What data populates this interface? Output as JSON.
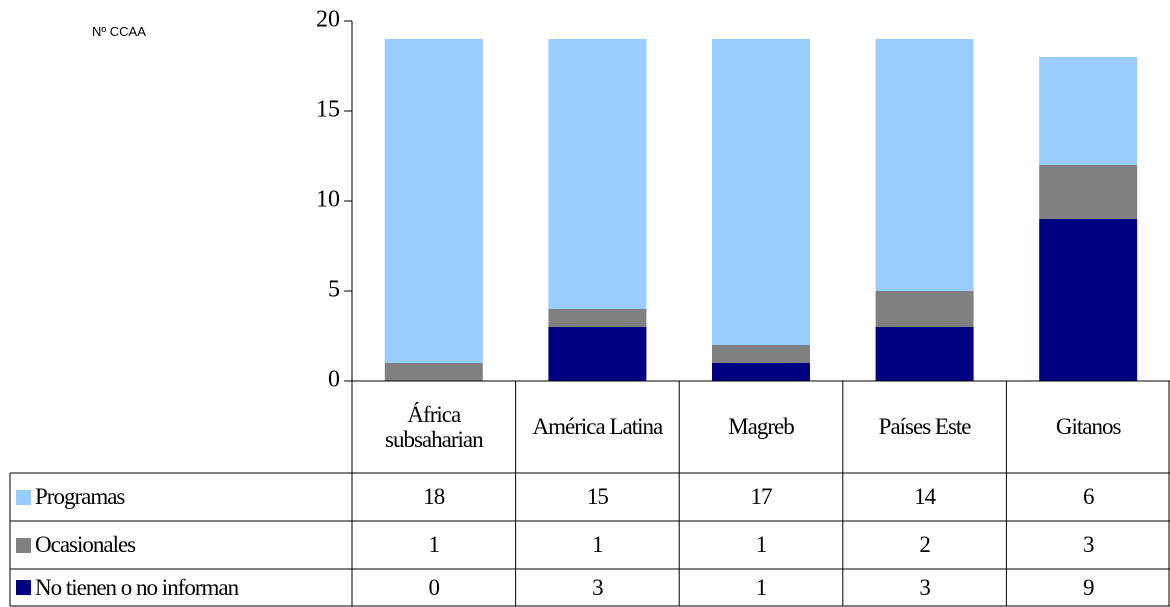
{
  "chart_data": {
    "type": "bar",
    "stacked": true,
    "y_label": "Nº CCAA",
    "categories": [
      "África subsaharian",
      "América Latina",
      "Magreb",
      "Países Este",
      "Gitanos"
    ],
    "series": [
      {
        "name": "Programas",
        "color": "#99ccff",
        "values": [
          18,
          15,
          17,
          14,
          6
        ]
      },
      {
        "name": "Ocasionales",
        "color": "#808080",
        "values": [
          1,
          1,
          1,
          2,
          3
        ]
      },
      {
        "name": "No tienen o no informan",
        "color": "#000080",
        "values": [
          0,
          3,
          1,
          3,
          9
        ]
      }
    ],
    "ylim": [
      0,
      20
    ],
    "yticks": [
      0,
      5,
      10,
      15,
      20
    ]
  }
}
